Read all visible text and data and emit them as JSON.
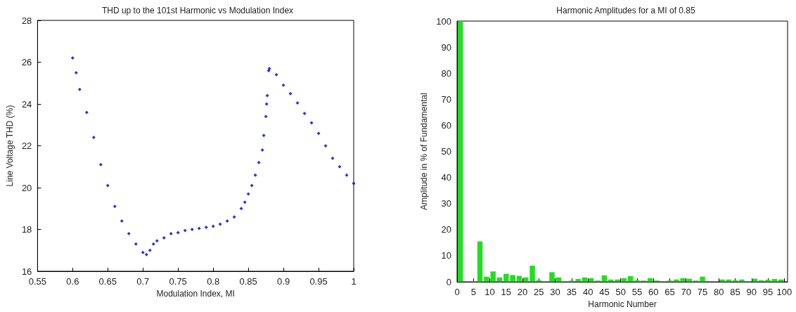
{
  "chart_data": [
    {
      "type": "scatter",
      "title": "THD up to the 101st Harmonic vs Modulation Index",
      "xlabel": "Modulation Index, MI",
      "ylabel": "Line Voltage THD (%)",
      "color": "#0000cc",
      "marker": "diamond",
      "grid": false,
      "x": [
        0.6,
        0.605,
        0.61,
        0.62,
        0.63,
        0.64,
        0.65,
        0.66,
        0.67,
        0.68,
        0.69,
        0.7,
        0.705,
        0.71,
        0.715,
        0.72,
        0.73,
        0.74,
        0.75,
        0.76,
        0.77,
        0.78,
        0.79,
        0.8,
        0.81,
        0.82,
        0.83,
        0.84,
        0.845,
        0.85,
        0.855,
        0.86,
        0.865,
        0.87,
        0.872,
        0.875,
        0.876,
        0.877,
        0.879,
        0.88,
        0.89,
        0.9,
        0.91,
        0.92,
        0.93,
        0.94,
        0.95,
        0.96,
        0.97,
        0.98,
        0.99,
        1.0
      ],
      "values": [
        26.2,
        25.5,
        24.7,
        23.6,
        22.4,
        21.1,
        20.1,
        19.1,
        18.4,
        17.8,
        17.3,
        16.9,
        16.8,
        17.0,
        17.3,
        17.45,
        17.6,
        17.8,
        17.85,
        17.95,
        18.0,
        18.05,
        18.1,
        18.15,
        18.25,
        18.4,
        18.6,
        19.0,
        19.3,
        19.7,
        20.1,
        20.6,
        21.2,
        21.8,
        22.5,
        23.4,
        24.0,
        24.4,
        25.6,
        25.7,
        25.4,
        24.9,
        24.5,
        24.05,
        23.55,
        23.1,
        22.6,
        22.0,
        21.4,
        21.0,
        20.6,
        20.2
      ],
      "xlim": [
        0.55,
        1
      ],
      "xticks": [
        0.55,
        0.6,
        0.65,
        0.7,
        0.75,
        0.8,
        0.85,
        0.9,
        0.95,
        1
      ],
      "ylim": [
        16,
        28
      ],
      "yticks": [
        16,
        18,
        20,
        22,
        24,
        26,
        28
      ]
    },
    {
      "type": "bar",
      "title": "Harmonic Amplitudes for a MI of 0.85",
      "xlabel": "Harmonic Number",
      "ylabel": "Amplitude in % of Fundamental",
      "color": "#22dd22",
      "grid": false,
      "x": [
        1,
        3,
        5,
        7,
        9,
        11,
        13,
        15,
        17,
        19,
        21,
        23,
        25,
        27,
        29,
        31,
        33,
        35,
        37,
        39,
        41,
        43,
        45,
        47,
        49,
        51,
        53,
        55,
        57,
        59,
        61,
        63,
        65,
        67,
        69,
        71,
        73,
        75,
        77,
        79,
        81,
        83,
        85,
        87,
        89,
        91,
        93,
        95,
        97,
        99
      ],
      "values": [
        100,
        0,
        0.3,
        15.5,
        2,
        4,
        1.7,
        3.1,
        2.6,
        2.3,
        1.7,
        6.2,
        0.6,
        0.2,
        3.7,
        1.7,
        0.2,
        0.5,
        1.1,
        1.7,
        1.4,
        0.5,
        2.5,
        0.9,
        0.9,
        1.4,
        2.2,
        0.6,
        0.5,
        1.4,
        0.5,
        0.2,
        0.5,
        0.9,
        1.4,
        1.2,
        0.5,
        2,
        0.2,
        0.2,
        0.9,
        0.9,
        0.6,
        0.9,
        0.2,
        1.2,
        0.6,
        0.8,
        1.1,
        0.9
      ],
      "xlim": [
        0,
        101
      ],
      "xticks": [
        0,
        5,
        10,
        15,
        20,
        25,
        30,
        35,
        40,
        45,
        50,
        55,
        60,
        65,
        70,
        75,
        80,
        85,
        90,
        95,
        100
      ],
      "ylim": [
        0,
        100
      ],
      "yticks": [
        0,
        10,
        20,
        30,
        40,
        50,
        60,
        70,
        80,
        90,
        100
      ]
    }
  ]
}
